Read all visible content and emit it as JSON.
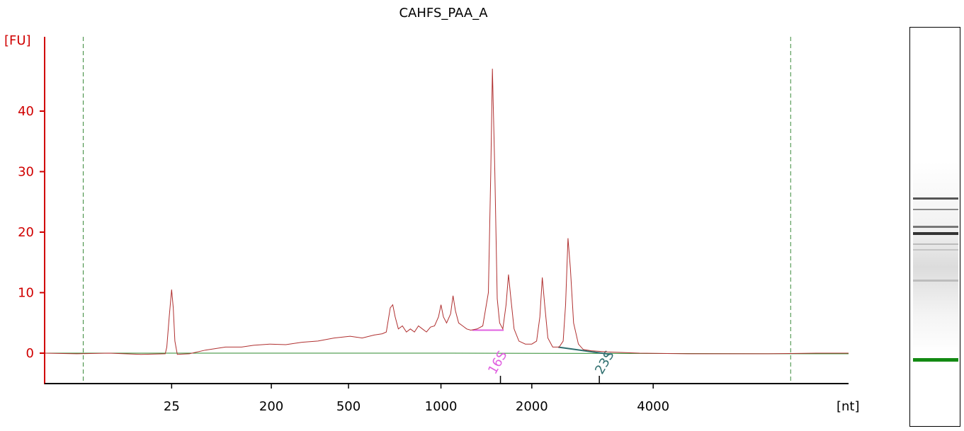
{
  "chart_data": {
    "type": "line",
    "title": "CAHFS_PAA_A",
    "ylabel": "[FU]",
    "xlabel": "[nt]",
    "ylim": [
      -5,
      52
    ],
    "yticks": [
      0,
      10,
      20,
      30,
      40
    ],
    "x_scale": "ladder (nonlinear)",
    "x_ticks": [
      {
        "label": "25",
        "t": 0.158
      },
      {
        "label": "200",
        "t": 0.282
      },
      {
        "label": "500",
        "t": 0.378
      },
      {
        "label": "1000",
        "t": 0.493
      },
      {
        "label": "2000",
        "t": 0.606
      },
      {
        "label": "4000",
        "t": 0.757
      }
    ],
    "x_unlabeled_ticks": [
      0.567,
      0.69
    ],
    "markers": [
      0.048,
      0.928
    ],
    "series": [
      {
        "color": "#b03030",
        "points": [
          [
            0.0,
            0.0
          ],
          [
            0.04,
            -0.1
          ],
          [
            0.08,
            0.0
          ],
          [
            0.12,
            -0.2
          ],
          [
            0.15,
            -0.1
          ],
          [
            0.152,
            1.0
          ],
          [
            0.155,
            6.0
          ],
          [
            0.158,
            10.5
          ],
          [
            0.16,
            7.5
          ],
          [
            0.162,
            2.0
          ],
          [
            0.165,
            -0.2
          ],
          [
            0.18,
            -0.1
          ],
          [
            0.2,
            0.5
          ],
          [
            0.225,
            1.0
          ],
          [
            0.245,
            1.0
          ],
          [
            0.26,
            1.3
          ],
          [
            0.28,
            1.5
          ],
          [
            0.3,
            1.4
          ],
          [
            0.32,
            1.8
          ],
          [
            0.34,
            2.0
          ],
          [
            0.36,
            2.5
          ],
          [
            0.38,
            2.8
          ],
          [
            0.395,
            2.5
          ],
          [
            0.41,
            3.0
          ],
          [
            0.42,
            3.2
          ],
          [
            0.425,
            3.5
          ],
          [
            0.43,
            7.5
          ],
          [
            0.433,
            8.0
          ],
          [
            0.436,
            6.0
          ],
          [
            0.44,
            4.0
          ],
          [
            0.445,
            4.5
          ],
          [
            0.45,
            3.5
          ],
          [
            0.455,
            4.0
          ],
          [
            0.46,
            3.5
          ],
          [
            0.465,
            4.5
          ],
          [
            0.47,
            4.0
          ],
          [
            0.475,
            3.5
          ],
          [
            0.48,
            4.3
          ],
          [
            0.485,
            4.5
          ],
          [
            0.49,
            6.0
          ],
          [
            0.493,
            8.0
          ],
          [
            0.496,
            6.0
          ],
          [
            0.5,
            5.0
          ],
          [
            0.505,
            6.5
          ],
          [
            0.508,
            9.5
          ],
          [
            0.511,
            7.0
          ],
          [
            0.515,
            5.0
          ],
          [
            0.52,
            4.5
          ],
          [
            0.525,
            4.0
          ],
          [
            0.53,
            3.8
          ],
          [
            0.538,
            4.0
          ],
          [
            0.545,
            4.5
          ],
          [
            0.552,
            10.0
          ],
          [
            0.555,
            30.0
          ],
          [
            0.557,
            47.0
          ],
          [
            0.56,
            30.0
          ],
          [
            0.563,
            9.0
          ],
          [
            0.566,
            5.0
          ],
          [
            0.57,
            4.0
          ],
          [
            0.574,
            8.0
          ],
          [
            0.577,
            13.0
          ],
          [
            0.58,
            9.0
          ],
          [
            0.584,
            4.0
          ],
          [
            0.59,
            2.0
          ],
          [
            0.598,
            1.5
          ],
          [
            0.606,
            1.5
          ],
          [
            0.612,
            2.0
          ],
          [
            0.616,
            6.0
          ],
          [
            0.619,
            12.5
          ],
          [
            0.622,
            8.0
          ],
          [
            0.626,
            2.5
          ],
          [
            0.632,
            1.0
          ],
          [
            0.64,
            1.0
          ],
          [
            0.645,
            2.0
          ],
          [
            0.648,
            8.0
          ],
          [
            0.651,
            19.0
          ],
          [
            0.654,
            14.0
          ],
          [
            0.658,
            5.0
          ],
          [
            0.664,
            1.5
          ],
          [
            0.67,
            0.6
          ],
          [
            0.68,
            0.4
          ],
          [
            0.7,
            0.2
          ],
          [
            0.74,
            0.0
          ],
          [
            0.8,
            -0.1
          ],
          [
            0.9,
            -0.1
          ],
          [
            0.96,
            0.0
          ],
          [
            1.0,
            0.0
          ]
        ]
      },
      {
        "color": "#2e8b2e",
        "points": [
          [
            0.0,
            0.0
          ],
          [
            0.5,
            0.0
          ],
          [
            1.0,
            -0.1
          ]
        ]
      }
    ],
    "regions": [
      {
        "label": "16S",
        "color": "#e060e0",
        "x_start": 0.532,
        "x_end": 0.571,
        "y": 3.8
      },
      {
        "label": "23S",
        "color": "#2f6f6f",
        "x_start": 0.639,
        "x_end": 0.704,
        "y_start": 1.0,
        "y_end": -0.2
      }
    ]
  }
}
